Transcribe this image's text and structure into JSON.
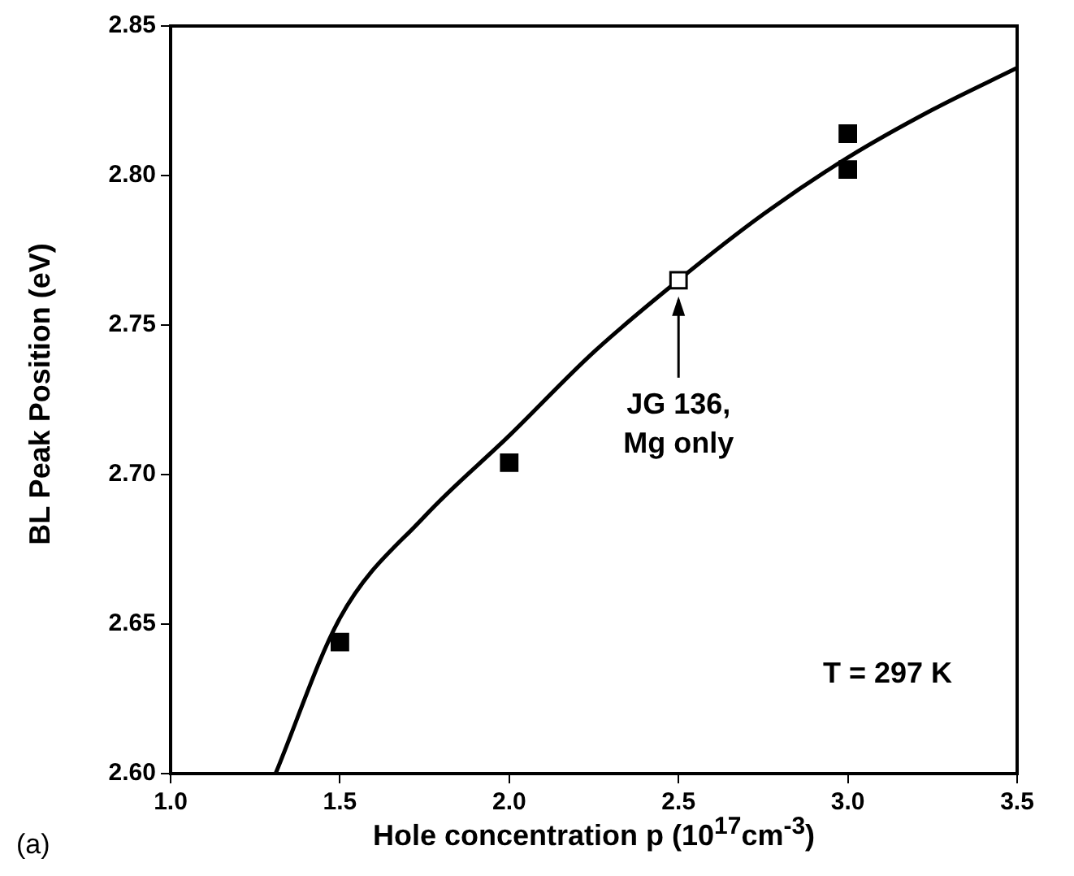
{
  "chart_data": {
    "type": "scatter",
    "xlabel": "Hole concentration p (10$^{17}$cm$^{-3}$)",
    "ylabel": "BL Peak Position (eV)",
    "series": [
      {
        "color": "#000000",
        "x": [
          1.5,
          2.0,
          3.0,
          3.0
        ],
        "values": [
          2.644,
          2.704,
          2.814,
          2.802
        ]
      },
      {
        "color": "#ffffff",
        "x": [
          2.5
        ],
        "values": [
          2.765
        ]
      },
      {
        "type": "line",
        "color": "#000000",
        "marker": "none",
        "x": [
          1.31,
          1.5,
          1.75,
          2.0,
          2.25,
          2.5,
          2.75,
          3.0,
          3.25,
          3.5
        ],
        "values": [
          2.6,
          2.652,
          2.686,
          2.713,
          2.741,
          2.765,
          2.787,
          2.806,
          2.822,
          2.836
        ]
      }
    ],
    "xlim": [
      1.0,
      3.5
    ],
    "xticks": [
      {
        "value": 1,
        "label": "1.0"
      },
      {
        "value": 1.5,
        "label": "1.5"
      },
      {
        "value": 2,
        "label": "2.0"
      },
      {
        "value": 2.5,
        "label": "2.5"
      },
      {
        "value": 3,
        "label": "3.0"
      },
      {
        "value": 3.5,
        "label": "3.5"
      }
    ],
    "ylim": [
      2.6,
      2.85
    ],
    "yticks": [
      {
        "value": 2.6,
        "label": "2.60"
      },
      {
        "value": 2.65,
        "label": "2.65"
      },
      {
        "value": 2.7,
        "label": "2.70"
      },
      {
        "value": 2.75,
        "label": "2.75"
      },
      {
        "value": 2.8,
        "label": "2.80"
      },
      {
        "value": 2.85,
        "label": "2.85"
      }
    ],
    "marker": "square",
    "grid": false,
    "legend": false,
    "annotations": [
      "JG 136,\nMg only",
      "T = 297 K",
      "(a)"
    ]
  }
}
